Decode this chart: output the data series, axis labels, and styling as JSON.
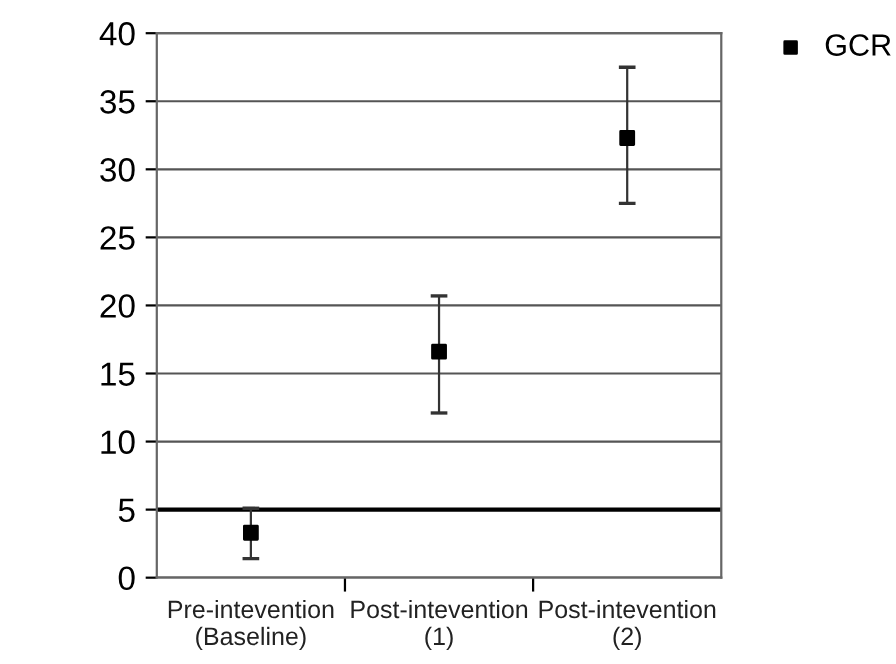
{
  "chart_data": {
    "type": "scatter",
    "categories": [
      "Pre-intevention\n(Baseline)",
      "Post-intevention\n(1)",
      "Post-intevention\n(2)"
    ],
    "series": [
      {
        "name": "GCR",
        "color": "#000000",
        "values": [
          3.3,
          16.6,
          32.3
        ],
        "errors": [
          [
            1.4,
            5.1
          ],
          [
            12.1,
            20.7
          ],
          [
            27.5,
            37.5
          ]
        ]
      }
    ],
    "ylim": [
      0,
      40
    ],
    "yticks": [
      0,
      5,
      10,
      15,
      20,
      25,
      30,
      35,
      40
    ],
    "grid": "y",
    "legend": "top right",
    "marker": "square",
    "ref_lines": [
      {
        "axis": "y",
        "value": 5,
        "color": "#000000"
      }
    ]
  }
}
